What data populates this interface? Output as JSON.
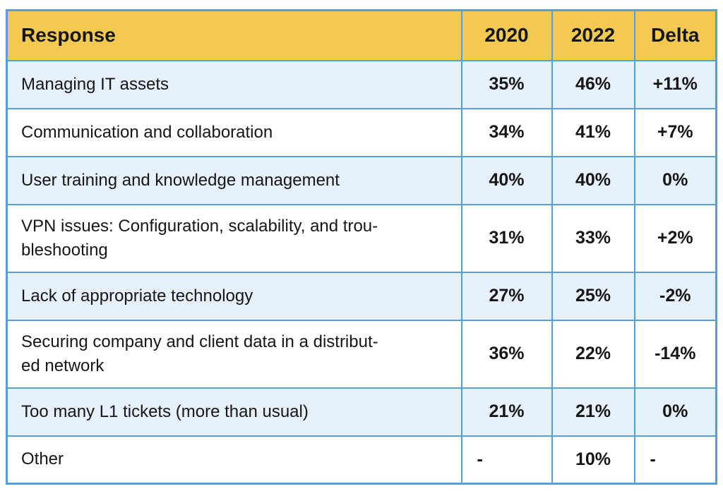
{
  "colors": {
    "header_background": "#f3c94f",
    "grid_border": "#55a0d9",
    "alt_row_background": "#e7f1fb",
    "row_background": "#ffffff",
    "text": "#161616"
  },
  "chart_data": {
    "type": "table",
    "columns": [
      "Response",
      "2020",
      "2022",
      "Delta"
    ],
    "rows": [
      [
        "Managing IT assets",
        "35%",
        "46%",
        "+11%"
      ],
      [
        "Communication and collaboration",
        "34%",
        "41%",
        "+7%"
      ],
      [
        "User training and knowledge management",
        "40%",
        "40%",
        "0%"
      ],
      [
        "VPN issues: Configuration, scalability, and trou-\nbleshooting",
        "31%",
        "33%",
        "+2%"
      ],
      [
        "Lack of appropriate technology",
        "27%",
        "25%",
        "-2%"
      ],
      [
        "Securing company and client data in a distribut-\ned network",
        "36%",
        "22%",
        "-14%"
      ],
      [
        "Too many L1 tickets (more than usual)",
        "21%",
        "21%",
        "0%"
      ],
      [
        "Other",
        "-",
        "10%",
        "-"
      ]
    ],
    "numeric": {
      "categories": [
        "Managing IT assets",
        "Communication and collaboration",
        "User training and knowledge management",
        "VPN issues: Configuration, scalability, and troubleshooting",
        "Lack of appropriate technology",
        "Securing company and client data in a distributed network",
        "Too many L1 tickets (more than usual)",
        "Other"
      ],
      "series": [
        {
          "name": "2020",
          "values": [
            35,
            34,
            40,
            31,
            27,
            36,
            21,
            null
          ]
        },
        {
          "name": "2022",
          "values": [
            46,
            41,
            40,
            33,
            25,
            22,
            21,
            10
          ]
        },
        {
          "name": "Delta",
          "values": [
            11,
            7,
            0,
            2,
            -2,
            -14,
            0,
            null
          ]
        }
      ],
      "unit": "%"
    }
  }
}
